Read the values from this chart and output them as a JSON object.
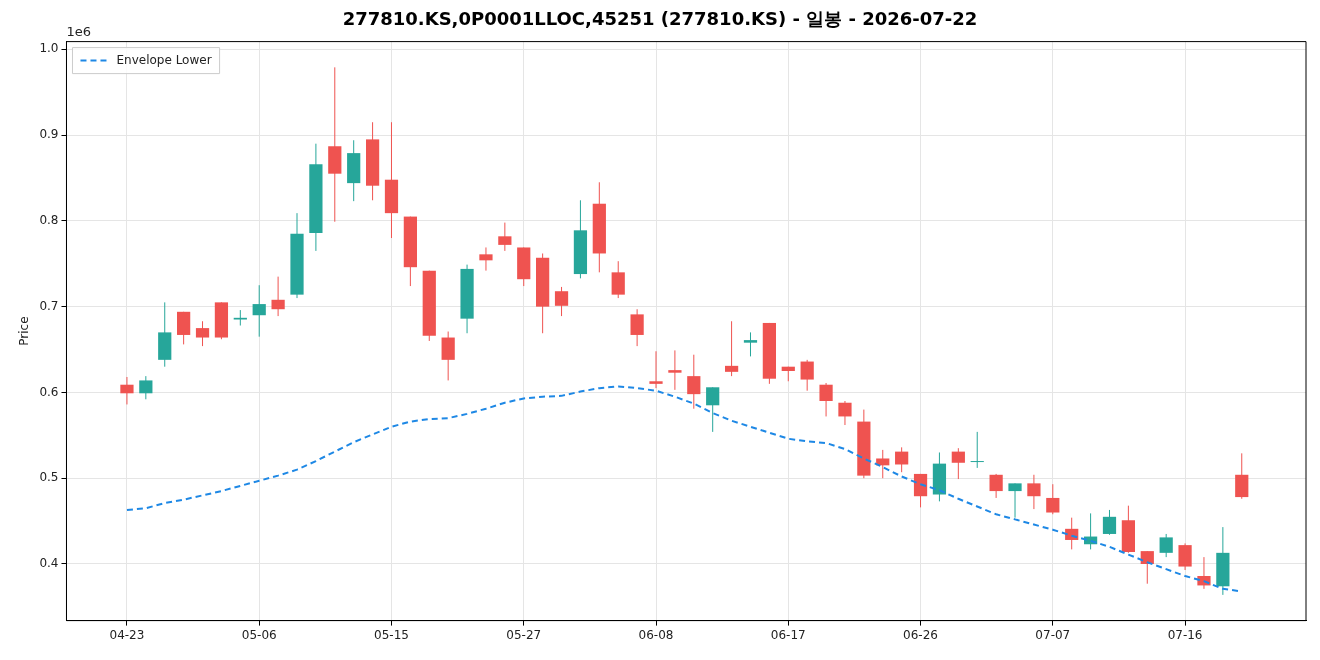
{
  "chart_data": {
    "type": "candlestick",
    "title": "277810.KS,0P0001LLOC,45251 (277810.KS) - 일봉 - 2026-07-22",
    "ylabel": "Price",
    "annotations": [
      "1e6"
    ],
    "categories": [
      "04-23",
      null,
      null,
      null,
      null,
      null,
      null,
      "05-06",
      null,
      null,
      null,
      null,
      null,
      null,
      "05-15",
      null,
      null,
      null,
      null,
      null,
      null,
      "05-27",
      null,
      null,
      null,
      null,
      null,
      null,
      "06-08",
      null,
      null,
      null,
      null,
      null,
      null,
      "06-17",
      null,
      null,
      null,
      null,
      null,
      null,
      "06-26",
      null,
      null,
      null,
      null,
      null,
      null,
      "07-07",
      null,
      null,
      null,
      null,
      null,
      null,
      "07-16",
      null,
      null,
      null
    ],
    "ohlc": [
      [
        0.609,
        0.618,
        0.586,
        0.599
      ],
      [
        0.599,
        0.619,
        0.592,
        0.614
      ],
      [
        0.638,
        0.705,
        0.63,
        0.67
      ],
      [
        0.694,
        0.694,
        0.656,
        0.667
      ],
      [
        0.675,
        0.683,
        0.654,
        0.664
      ],
      [
        0.705,
        0.705,
        0.662,
        0.664
      ],
      [
        0.685,
        0.696,
        0.678,
        0.687
      ],
      [
        0.69,
        0.725,
        0.665,
        0.703
      ],
      [
        0.708,
        0.735,
        0.689,
        0.697
      ],
      [
        0.714,
        0.809,
        0.71,
        0.785
      ],
      [
        0.786,
        0.89,
        0.765,
        0.866
      ],
      [
        0.887,
        0.979,
        0.799,
        0.855
      ],
      [
        0.844,
        0.894,
        0.823,
        0.879
      ],
      [
        0.895,
        0.915,
        0.824,
        0.841
      ],
      [
        0.848,
        0.915,
        0.78,
        0.809
      ],
      [
        0.805,
        0.805,
        0.724,
        0.746
      ],
      [
        0.742,
        0.742,
        0.66,
        0.666
      ],
      [
        0.664,
        0.671,
        0.614,
        0.638
      ],
      [
        0.686,
        0.749,
        0.669,
        0.744
      ],
      [
        0.761,
        0.769,
        0.742,
        0.754
      ],
      [
        0.782,
        0.798,
        0.765,
        0.772
      ],
      [
        0.769,
        0.769,
        0.724,
        0.732
      ],
      [
        0.757,
        0.762,
        0.669,
        0.7
      ],
      [
        0.718,
        0.723,
        0.689,
        0.701
      ],
      [
        0.738,
        0.824,
        0.733,
        0.789
      ],
      [
        0.82,
        0.845,
        0.74,
        0.762
      ],
      [
        0.74,
        0.753,
        0.71,
        0.714
      ],
      [
        0.691,
        0.697,
        0.654,
        0.667
      ],
      [
        0.613,
        0.648,
        0.605,
        0.61
      ],
      [
        0.626,
        0.649,
        0.603,
        0.623
      ],
      [
        0.619,
        0.644,
        0.581,
        0.598
      ],
      [
        0.585,
        0.606,
        0.554,
        0.606
      ],
      [
        0.631,
        0.683,
        0.619,
        0.624
      ],
      [
        0.658,
        0.67,
        0.642,
        0.661
      ],
      [
        0.681,
        0.681,
        0.61,
        0.616
      ],
      [
        0.63,
        0.63,
        0.613,
        0.625
      ],
      [
        0.636,
        0.638,
        0.602,
        0.615
      ],
      [
        0.609,
        0.611,
        0.572,
        0.59
      ],
      [
        0.588,
        0.59,
        0.562,
        0.572
      ],
      [
        0.566,
        0.58,
        0.5,
        0.503
      ],
      [
        0.523,
        0.533,
        0.5,
        0.515
      ],
      [
        0.531,
        0.536,
        0.507,
        0.516
      ],
      [
        0.505,
        0.505,
        0.466,
        0.479
      ],
      [
        0.481,
        0.53,
        0.473,
        0.517
      ],
      [
        0.531,
        0.535,
        0.499,
        0.518
      ],
      [
        0.519,
        0.554,
        0.512,
        0.52
      ],
      [
        0.504,
        0.505,
        0.477,
        0.485
      ],
      [
        0.485,
        0.494,
        0.454,
        0.494
      ],
      [
        0.494,
        0.504,
        0.464,
        0.479
      ],
      [
        0.477,
        0.493,
        0.458,
        0.46
      ],
      [
        0.441,
        0.454,
        0.417,
        0.428
      ],
      [
        0.423,
        0.459,
        0.417,
        0.432
      ],
      [
        0.435,
        0.463,
        0.434,
        0.455
      ],
      [
        0.451,
        0.468,
        0.413,
        0.414
      ],
      [
        0.415,
        0.415,
        0.377,
        0.4
      ],
      [
        0.413,
        0.435,
        0.408,
        0.431
      ],
      [
        0.422,
        0.424,
        0.393,
        0.397
      ],
      [
        0.386,
        0.408,
        0.371,
        0.375
      ],
      [
        0.374,
        0.443,
        0.364,
        0.413
      ],
      [
        0.504,
        0.529,
        0.476,
        0.478
      ]
    ],
    "colors": [
      "#ef5350",
      "#26a69a",
      "#26a69a",
      "#ef5350",
      "#ef5350",
      "#ef5350",
      "#26a69a",
      "#26a69a",
      "#ef5350",
      "#26a69a",
      "#26a69a",
      "#ef5350",
      "#26a69a",
      "#ef5350",
      "#ef5350",
      "#ef5350",
      "#ef5350",
      "#ef5350",
      "#26a69a",
      "#ef5350",
      "#ef5350",
      "#ef5350",
      "#ef5350",
      "#ef5350",
      "#26a69a",
      "#ef5350",
      "#ef5350",
      "#ef5350",
      "#ef5350",
      "#ef5350",
      "#ef5350",
      "#26a69a",
      "#ef5350",
      "#26a69a",
      "#ef5350",
      "#ef5350",
      "#ef5350",
      "#ef5350",
      "#ef5350",
      "#ef5350",
      "#ef5350",
      "#ef5350",
      "#ef5350",
      "#26a69a",
      "#ef5350",
      "#26a69a",
      "#ef5350",
      "#26a69a",
      "#ef5350",
      "#ef5350",
      "#ef5350",
      "#26a69a",
      "#26a69a",
      "#ef5350",
      "#ef5350",
      "#26a69a",
      "#ef5350",
      "#ef5350",
      "#26a69a",
      "#ef5350"
    ],
    "series": [
      {
        "name": "Envelope Lower",
        "type": "line",
        "color": "#1e88e5",
        "line_style": "dashed",
        "marker": "none",
        "values": [
          0.463,
          0.465,
          0.471,
          0.475,
          0.48,
          0.485,
          0.491,
          0.497,
          0.503,
          0.51,
          0.52,
          0.531,
          0.542,
          0.551,
          0.56,
          0.566,
          0.569,
          0.57,
          0.575,
          0.581,
          0.588,
          0.593,
          0.595,
          0.596,
          0.601,
          0.605,
          0.607,
          0.605,
          0.602,
          0.595,
          0.587,
          0.576,
          0.567,
          0.56,
          0.553,
          0.546,
          0.543,
          0.541,
          0.534,
          0.523,
          0.513,
          0.502,
          0.493,
          0.486,
          0.476,
          0.467,
          0.458,
          0.452,
          0.446,
          0.44,
          0.433,
          0.427,
          0.42,
          0.411,
          0.402,
          0.394,
          0.386,
          0.38,
          0.371,
          0.368
        ]
      }
    ],
    "ylim": [
      0.334,
      1.009
    ],
    "yticks": [
      0.4,
      0.5,
      0.6,
      0.7,
      0.8,
      0.9,
      {
        "value": 1.0,
        "label": "1.0"
      }
    ],
    "grid": true,
    "legend": "top left"
  }
}
